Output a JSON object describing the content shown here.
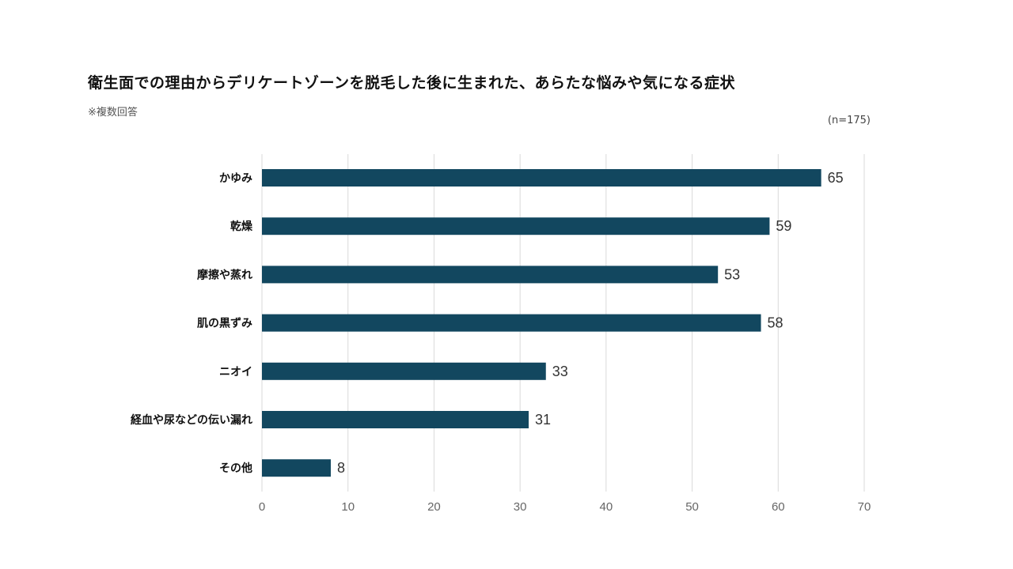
{
  "header": {
    "title": "衛生面での理由からデリケートゾーンを脱毛した後に生まれた、あらたな悩みや気になる症状",
    "note": "※複数回答",
    "sample_size": "(n=175)"
  },
  "colors": {
    "bar": "#12475f",
    "grid": "#d9d9d9",
    "tick_text": "#666666",
    "value_text": "#333333",
    "label_text": "#111111"
  },
  "chart_data": {
    "type": "bar",
    "orientation": "horizontal",
    "categories": [
      "かゆみ",
      "乾燥",
      "摩擦や蒸れ",
      "肌の黒ずみ",
      "ニオイ",
      "経血や尿などの伝い漏れ",
      "その他"
    ],
    "values": [
      65,
      59,
      53,
      58,
      33,
      31,
      8
    ],
    "xticks": [
      0,
      10,
      20,
      30,
      40,
      50,
      60,
      70
    ],
    "xlim": [
      0,
      70
    ],
    "grid": "vertical",
    "legend": "none",
    "data_labels": true
  }
}
